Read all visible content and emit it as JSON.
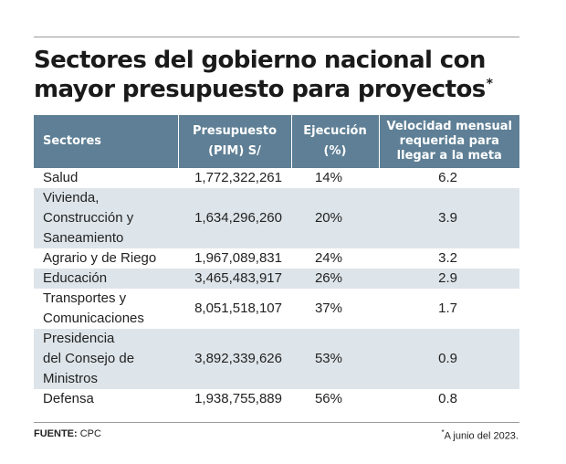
{
  "title": {
    "line1": "Sectores del gobierno nacional con",
    "line2": "mayor presupuesto para proyectos",
    "marker": "*"
  },
  "table": {
    "headers": {
      "sector": "Sectores",
      "budget_l1": "Presupuesto",
      "budget_l2": "(PIM) S/",
      "exec_l1": "Ejecución",
      "exec_l2": "(%)",
      "speed_l1": "Velocidad mensual",
      "speed_l2": "requerida para",
      "speed_l3": "llegar a la meta"
    },
    "rows": [
      {
        "sector": [
          "Salud"
        ],
        "budget": "1,772,322,261",
        "execution": "14%",
        "speed": "6.2"
      },
      {
        "sector": [
          "Vivienda,",
          "Construcción y",
          "Saneamiento"
        ],
        "budget": "1,634,296,260",
        "execution": "20%",
        "speed": "3.9"
      },
      {
        "sector": [
          "Agrario y de Riego"
        ],
        "budget": "1,967,089,831",
        "execution": "24%",
        "speed": "3.2"
      },
      {
        "sector": [
          "Educación"
        ],
        "budget": "3,465,483,917",
        "execution": "26%",
        "speed": "2.9"
      },
      {
        "sector": [
          "Transportes y",
          "Comunicaciones"
        ],
        "budget": "8,051,518,107",
        "execution": "37%",
        "speed": "1.7"
      },
      {
        "sector": [
          "Presidencia",
          "del Consejo de",
          "Ministros"
        ],
        "budget": "3,892,339,626",
        "execution": "53%",
        "speed": "0.9"
      },
      {
        "sector": [
          "Defensa"
        ],
        "budget": "1,938,755,889",
        "execution": "56%",
        "speed": "0.8"
      }
    ]
  },
  "footer": {
    "source_label": "FUENTE:",
    "source_value": "CPC",
    "note_marker": "*",
    "note_text": "A junio del 2023."
  }
}
